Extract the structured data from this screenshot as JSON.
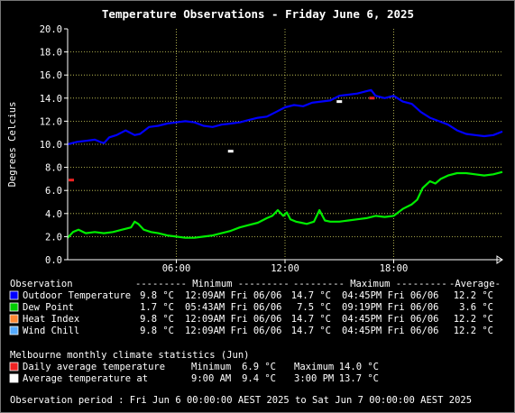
{
  "chart_data": {
    "type": "line",
    "title": "Temperature Observations - Friday June 6, 2025",
    "ylabel": "Degrees Celcius",
    "ylim": [
      0,
      20
    ],
    "xlim": [
      0,
      24
    ],
    "grid": true,
    "y_ticks": [
      "0.0",
      "2.0",
      "4.0",
      "6.0",
      "8.0",
      "10.0",
      "12.0",
      "14.0",
      "16.0",
      "18.0",
      "20.0"
    ],
    "x_ticks": [
      {
        "x": 6,
        "label": "06:00"
      },
      {
        "x": 12,
        "label": "12:00"
      },
      {
        "x": 18,
        "label": "18:00"
      }
    ],
    "series": [
      {
        "name": "Outdoor Temperature",
        "color": "#0000ff",
        "x": [
          0,
          0.5,
          1,
          1.5,
          1.8,
          2,
          2.3,
          2.7,
          3.2,
          3.7,
          4,
          4.5,
          5,
          5.5,
          6,
          6.5,
          7,
          7.5,
          8,
          8.5,
          9,
          9.5,
          10,
          10.5,
          11,
          11.5,
          12,
          12.5,
          13,
          13.5,
          14,
          14.5,
          15,
          15.5,
          16,
          16.5,
          16.75,
          17,
          17.5,
          18,
          18.5,
          19,
          19.5,
          20,
          20.5,
          21,
          21.5,
          22,
          22.5,
          23,
          23.5,
          24
        ],
        "y": [
          10,
          10.2,
          10.3,
          10.4,
          10.2,
          10.1,
          10.6,
          10.8,
          11.2,
          10.8,
          10.9,
          11.5,
          11.6,
          11.8,
          11.9,
          12,
          11.9,
          11.6,
          11.5,
          11.7,
          11.8,
          11.9,
          12.1,
          12.3,
          12.4,
          12.8,
          13.2,
          13.4,
          13.3,
          13.6,
          13.7,
          13.8,
          14.2,
          14.3,
          14.4,
          14.6,
          14.7,
          14.2,
          14,
          14.2,
          13.7,
          13.5,
          12.8,
          12.3,
          12,
          11.7,
          11.2,
          10.9,
          10.8,
          10.7,
          10.8,
          11.1
        ]
      },
      {
        "name": "Dew Point",
        "color": "#00ee00",
        "x": [
          0,
          0.3,
          0.6,
          1,
          1.5,
          2,
          2.5,
          3,
          3.5,
          3.7,
          3.9,
          4.2,
          4.6,
          5,
          5.5,
          6,
          6.5,
          7,
          7.5,
          8,
          8.5,
          9,
          9.5,
          10,
          10.5,
          11,
          11.3,
          11.6,
          11.9,
          12.1,
          12.3,
          12.6,
          12.9,
          13.2,
          13.6,
          13.9,
          14.2,
          14.5,
          15,
          15.5,
          16,
          16.5,
          17,
          17.5,
          18,
          18.5,
          19,
          19.3,
          19.6,
          20,
          20.3,
          20.6,
          21,
          21.5,
          22,
          22.5,
          23,
          23.5,
          24
        ],
        "y": [
          1.9,
          2.4,
          2.6,
          2.3,
          2.4,
          2.3,
          2.4,
          2.6,
          2.8,
          3.3,
          3.1,
          2.6,
          2.4,
          2.3,
          2.1,
          2.0,
          1.9,
          1.9,
          2.0,
          2.1,
          2.3,
          2.5,
          2.8,
          3.0,
          3.2,
          3.6,
          3.8,
          4.3,
          3.8,
          4.1,
          3.5,
          3.3,
          3.2,
          3.1,
          3.3,
          4.3,
          3.4,
          3.3,
          3.3,
          3.4,
          3.5,
          3.6,
          3.8,
          3.7,
          3.8,
          4.4,
          4.8,
          5.2,
          6.2,
          6.8,
          6.6,
          7.0,
          7.3,
          7.5,
          7.5,
          7.4,
          7.3,
          7.4,
          7.6
        ]
      }
    ],
    "points": [
      {
        "name": "Daily average temperature min",
        "x": 0.2,
        "y": 6.9,
        "color": "#ee2222"
      },
      {
        "name": "Daily average temperature max",
        "x": 16.8,
        "y": 14.0,
        "color": "#ee2222"
      },
      {
        "name": "Average temperature 9am",
        "x": 9.0,
        "y": 9.4,
        "color": "#ffffff"
      },
      {
        "name": "Average temperature 3pm",
        "x": 15.0,
        "y": 13.7,
        "color": "#ffffff"
      }
    ]
  },
  "summary": {
    "header": {
      "observation": "Observation",
      "minimum": "--------- Minimum ---------",
      "maximum": "--------- Maximum ---------",
      "average": "-Average-"
    },
    "rows": [
      {
        "label": "Outdoor Temperature",
        "color": "#0000ff",
        "min": "9.8 °C",
        "min_time": "12:09AM Fri 06/06",
        "max": "14.7 °C",
        "max_time": "04:45PM Fri 06/06",
        "avg": "12.2 °C"
      },
      {
        "label": "Dew Point",
        "color": "#00cc00",
        "min": "1.7 °C",
        "min_time": "05:43AM Fri 06/06",
        "max": "7.5 °C",
        "max_time": "09:19PM Fri 06/06",
        "avg": "3.6 °C"
      },
      {
        "label": "Heat Index",
        "color": "#ff8833",
        "min": "9.8 °C",
        "min_time": "12:09AM Fri 06/06",
        "max": "14.7 °C",
        "max_time": "04:45PM Fri 06/06",
        "avg": "12.2 °C"
      },
      {
        "label": "Wind Chill",
        "color": "#55aaff",
        "min": "9.8 °C",
        "min_time": "12:09AM Fri 06/06",
        "max": "14.7 °C",
        "max_time": "04:45PM Fri 06/06",
        "avg": "12.2 °C"
      }
    ]
  },
  "climate": {
    "title": "Melbourne monthly climate statistics (Jun)",
    "rows": [
      {
        "label": "Daily average temperature",
        "color": "#ee2222",
        "k1": "Minimum",
        "v1": "6.9 °C",
        "k2": "Maximum",
        "v2": "14.0 °C"
      },
      {
        "label": "Average temperature at",
        "color": "#ffffff",
        "k1": "9:00 AM",
        "v1": "9.4 °C",
        "k2": "3:00 PM",
        "v2": "13.7 °C"
      }
    ]
  },
  "footer": "Observation period : Fri Jun 6 00:00:00 AEST 2025 to Sat Jun 7 00:00:00 AEST 2025",
  "colors": {
    "background": "#000000",
    "text": "#ffffff",
    "grid": "#d8d860",
    "axis": "#ffffff"
  }
}
